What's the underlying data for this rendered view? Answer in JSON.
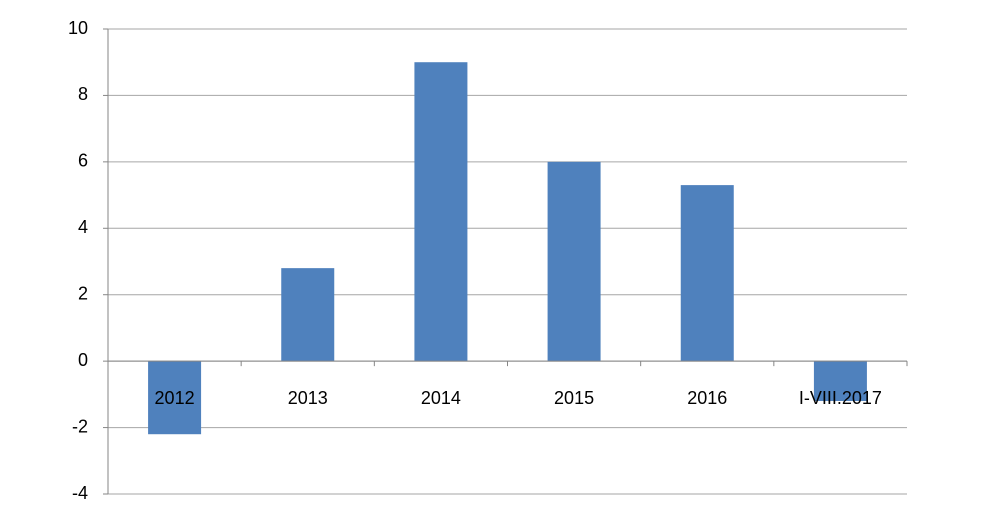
{
  "chart_data": {
    "type": "bar",
    "categories": [
      "2012",
      "2013",
      "2014",
      "2015",
      "2016",
      "I-VIII.2017"
    ],
    "values": [
      -2.2,
      2.8,
      9.0,
      6.0,
      5.3,
      -1.2
    ],
    "color": "#4f81bd",
    "ylim": [
      -4,
      10
    ],
    "yticks": [
      -4,
      -2,
      0,
      2,
      4,
      6,
      8,
      10
    ],
    "grid": true
  }
}
